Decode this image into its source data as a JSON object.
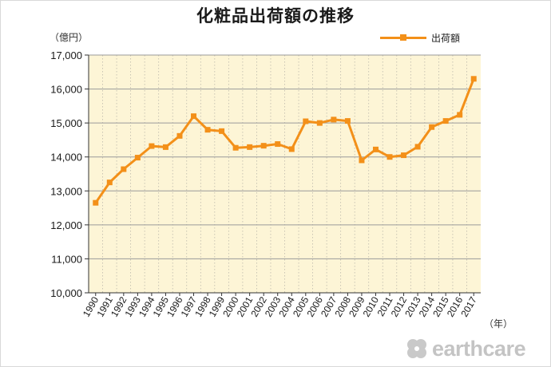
{
  "chart_data": {
    "type": "line",
    "title": "化粧品出荷額の推移",
    "y_unit_label": "（億円）",
    "x_unit_label": "（年）",
    "xlabel": "",
    "ylabel": "",
    "ylim": [
      10000,
      17000
    ],
    "y_ticks": [
      10000,
      11000,
      12000,
      13000,
      14000,
      15000,
      16000,
      17000
    ],
    "y_tick_labels": [
      "10,000",
      "11,000",
      "12,000",
      "13,000",
      "14,000",
      "15,000",
      "16,000",
      "17,000"
    ],
    "grid": true,
    "legend_position": "top-right",
    "background_color": "#fdf5d6",
    "categories": [
      "1990",
      "1991",
      "1992",
      "1993",
      "1994",
      "1995",
      "1996",
      "1997",
      "1998",
      "1999",
      "2000",
      "2001",
      "2002",
      "2003",
      "2004",
      "2005",
      "2006",
      "2007",
      "2008",
      "2009",
      "2010",
      "2011",
      "2012",
      "2013",
      "2014",
      "2015",
      "2016",
      "2017"
    ],
    "series": [
      {
        "name": "出荷額",
        "color": "#f39019",
        "values": [
          12650,
          13250,
          13640,
          13980,
          14320,
          14290,
          14620,
          15200,
          14800,
          14760,
          14270,
          14290,
          14330,
          14380,
          14230,
          15050,
          15000,
          15100,
          15060,
          13900,
          14220,
          14000,
          14050,
          14300,
          14880,
          15060,
          15240,
          16300
        ]
      }
    ]
  },
  "watermark": {
    "text": "earthcare",
    "icon": "leaf-clover-icon"
  }
}
